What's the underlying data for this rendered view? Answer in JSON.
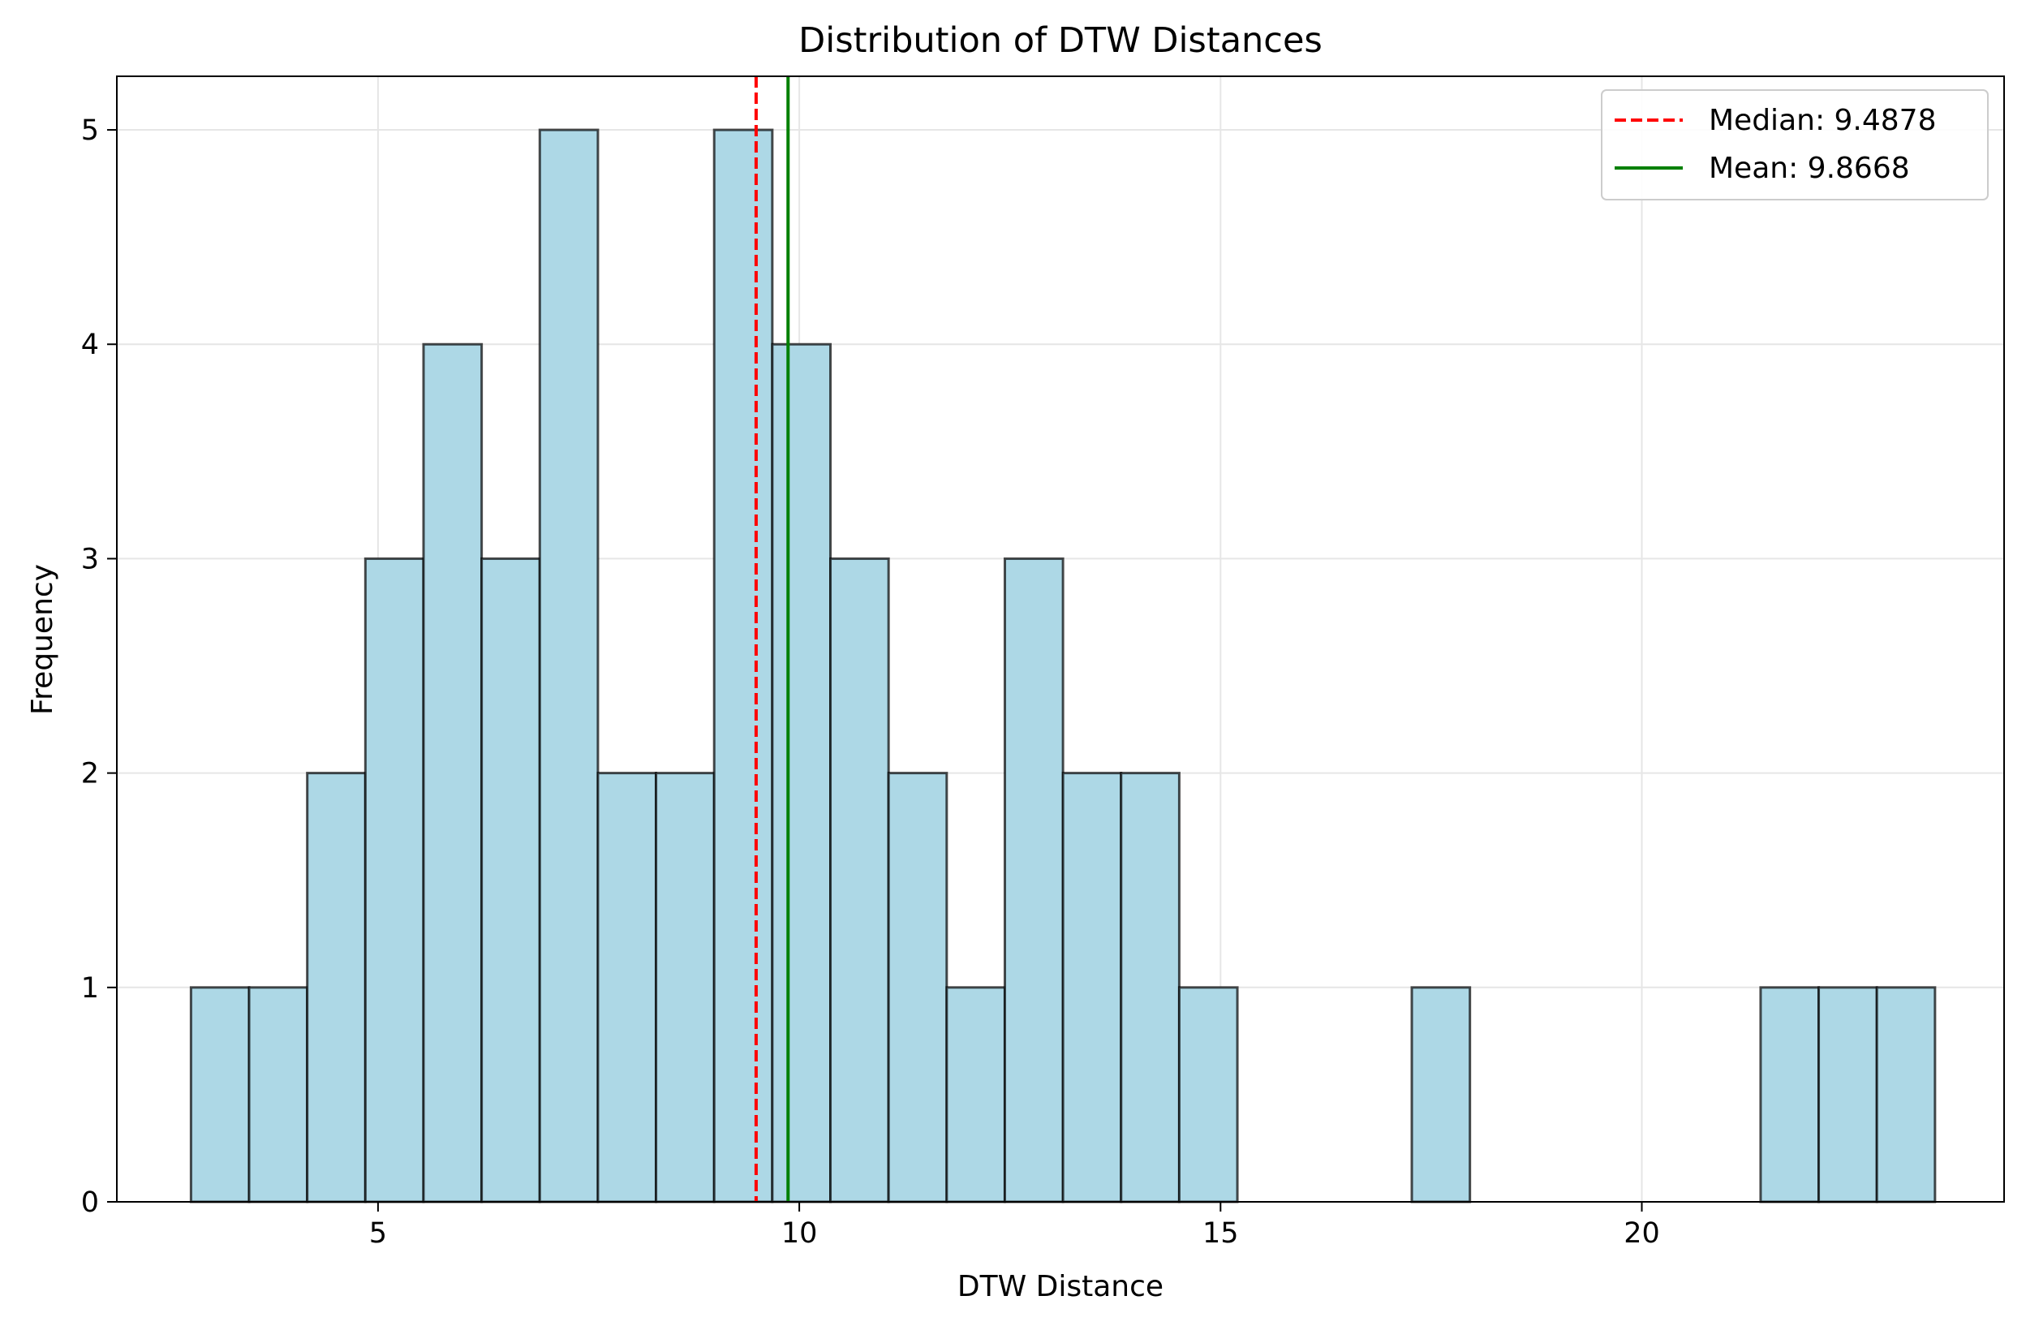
{
  "chart_data": {
    "type": "bar",
    "subtype": "histogram",
    "title": "Distribution of DTW Distances",
    "xlabel": "DTW Distance",
    "ylabel": "Frequency",
    "xlim": [
      1.9,
      24.3
    ],
    "ylim": [
      0,
      5.25
    ],
    "xticks": [
      5,
      10,
      15,
      20
    ],
    "yticks": [
      0,
      1,
      2,
      3,
      4,
      5
    ],
    "grid": true,
    "legend_position": "top-right",
    "bin_edges": [
      2.78,
      3.47,
      4.16,
      4.85,
      5.54,
      6.23,
      6.92,
      7.61,
      8.3,
      8.99,
      9.68,
      10.37,
      11.06,
      11.75,
      12.44,
      13.13,
      13.82,
      14.51,
      15.2,
      15.89,
      16.58,
      17.27,
      17.96,
      18.65,
      19.34,
      20.03,
      20.72,
      21.41,
      22.1,
      22.79,
      23.48
    ],
    "counts": [
      1,
      1,
      2,
      3,
      4,
      3,
      5,
      2,
      2,
      5,
      4,
      3,
      2,
      1,
      3,
      2,
      2,
      1,
      0,
      0,
      0,
      1,
      0,
      0,
      0,
      0,
      0,
      1,
      1,
      1
    ],
    "bar_color": "#add8e6",
    "edge_color": "#000000",
    "lines": [
      {
        "label": "Median: 9.4878",
        "value": 9.4878,
        "color": "#ff0000",
        "style": "dashed"
      },
      {
        "label": "Mean: 9.8668",
        "value": 9.8668,
        "color": "#008000",
        "style": "solid"
      }
    ]
  }
}
